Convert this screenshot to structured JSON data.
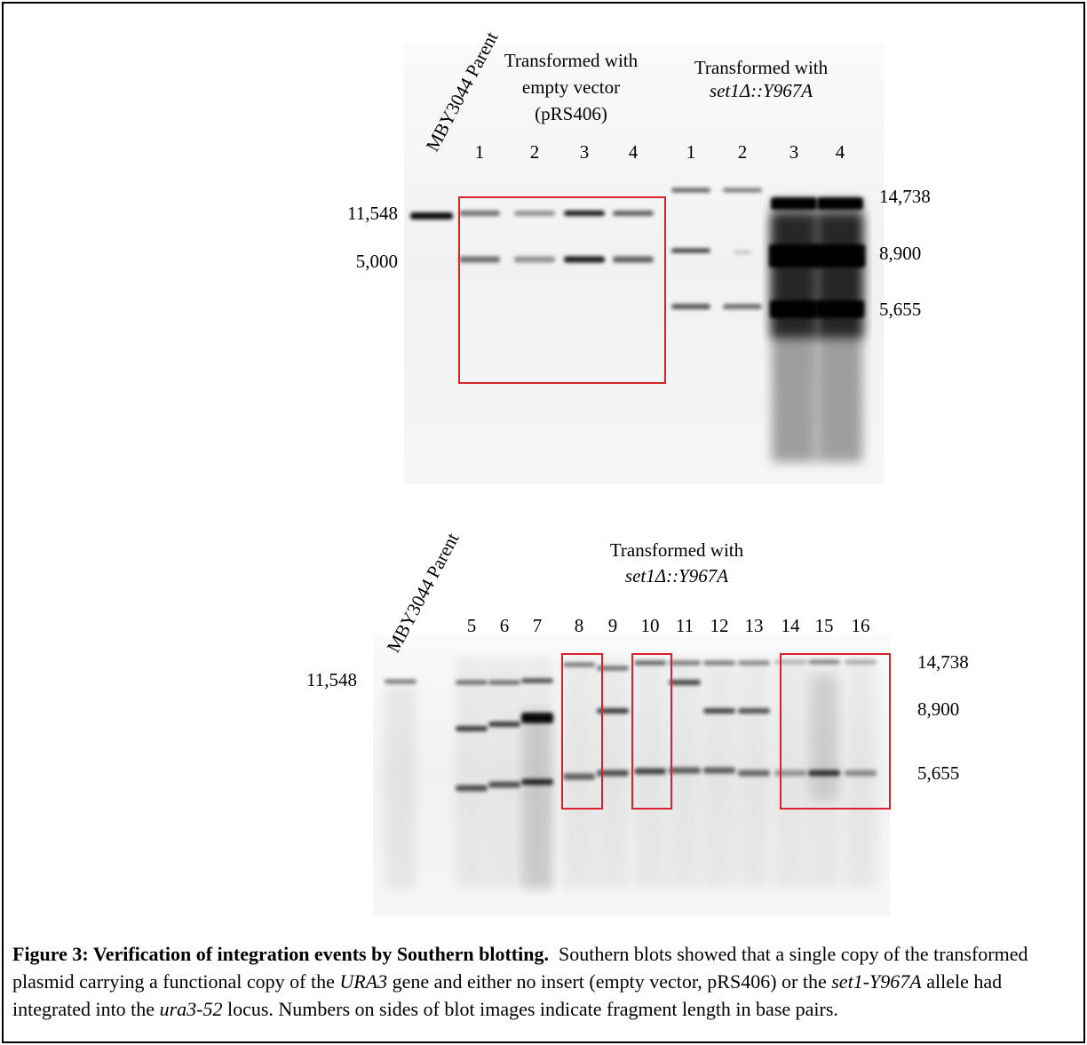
{
  "top_blot": {
    "parent_label": "MBY3044 Parent",
    "group1": {
      "lines": [
        "Transformed with",
        "empty vector",
        "(pRS406)"
      ],
      "lanes": [
        "1",
        "2",
        "3",
        "4"
      ]
    },
    "group2": {
      "lines": [
        "Transformed with",
        "set1Δ::Y967A"
      ],
      "lanes": [
        "1",
        "2",
        "3",
        "4"
      ]
    },
    "left_markers": [
      "11,548",
      "5,000"
    ],
    "right_markers": [
      "14,738",
      "8,900",
      "5,655"
    ]
  },
  "bottom_blot": {
    "parent_label": "MBY3044 Parent",
    "group": {
      "lines": [
        "Transformed with",
        "set1Δ::Y967A"
      ],
      "lanes": [
        "5",
        "6",
        "7",
        "8",
        "9",
        "10",
        "11",
        "12",
        "13",
        "14",
        "15",
        "16"
      ]
    },
    "left_markers": [
      "11,548"
    ],
    "right_markers": [
      "14,738",
      "8,900",
      "5,655"
    ]
  },
  "caption": {
    "title": "Figure 3: Verification of integration events by Southern blotting.",
    "body": [
      "Southern blots showed that a single copy of the transformed plasmid carrying a functional copy of the ",
      "URA3",
      " gene and either no insert (empty vector, pRS406) or the ",
      "set1-Y967A",
      " allele had integrated into the ",
      "ura3-52",
      " locus. Numbers on sides of blot images indicate fragment length in base pairs."
    ]
  }
}
